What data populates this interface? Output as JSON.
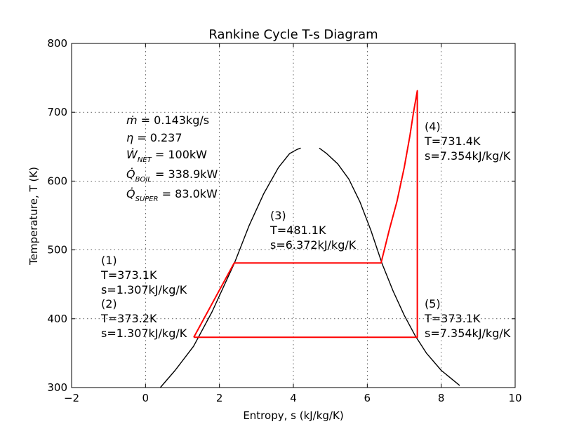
{
  "chart_data": {
    "type": "line",
    "title": "Rankine Cycle T-s Diagram",
    "xlabel": "Entropy, s (kJ/kg/K)",
    "ylabel": "Temperature, T (K)",
    "xlim": [
      -2,
      10
    ],
    "ylim": [
      300,
      800
    ],
    "xticks": [
      "−2",
      "0",
      "2",
      "4",
      "6",
      "8",
      "10"
    ],
    "yticks": [
      "300",
      "400",
      "500",
      "600",
      "700",
      "800"
    ],
    "grid": true,
    "colors": {
      "dome": "#000000",
      "cycle": "#ff0000"
    },
    "series": [
      {
        "x": [
          0.4,
          0.8,
          1.3,
          1.8,
          2.1,
          2.4,
          2.8,
          3.2,
          3.6,
          3.9,
          4.1,
          4.2
        ],
        "y": [
          300,
          325,
          360,
          410,
          445,
          480,
          535,
          582,
          620,
          640,
          646,
          648
        ]
      },
      {
        "x": [
          4.7,
          4.9,
          5.2,
          5.5,
          5.8,
          6.1,
          6.4,
          6.7,
          7.0,
          7.3,
          7.6,
          8.0,
          8.5
        ],
        "y": [
          648,
          640,
          625,
          603,
          570,
          528,
          480,
          440,
          405,
          375,
          350,
          325,
          303
        ]
      },
      {
        "x": [
          1.307,
          1.307,
          2.4,
          6.372,
          6.6,
          6.8,
          7.0,
          7.15,
          7.25,
          7.354,
          7.354,
          1.307
        ],
        "y": [
          373.1,
          373.2,
          481.1,
          481.1,
          530,
          570,
          620,
          665,
          700,
          731.4,
          373.1,
          373.1
        ]
      }
    ],
    "state_labels": [
      {
        "id": "(1)",
        "T": "T=373.1K",
        "s": "s=1.307kJ/kg/K"
      },
      {
        "id": "(2)",
        "T": "T=373.2K",
        "s": "s=1.307kJ/kg/K"
      },
      {
        "id": "(3)",
        "T": "T=481.1K",
        "s": "s=6.372kJ/kg/K"
      },
      {
        "id": "(4)",
        "T": "T=731.4K",
        "s": "s=7.354kJ/kg/K"
      },
      {
        "id": "(5)",
        "T": "T=373.1K",
        "s": "s=7.354kJ/kg/K"
      }
    ],
    "summary": [
      {
        "sym": "ṁ",
        "sub": "",
        "value": " = 0.143kg/s"
      },
      {
        "sym": "η",
        "sub": "",
        "value": " = 0.237"
      },
      {
        "sym": "Ẇ",
        "sub": "NET",
        "value": " = 100kW"
      },
      {
        "sym": "Q̇",
        "sub": "BOIL",
        "value": " = 338.9kW"
      },
      {
        "sym": "Q̇",
        "sub": "SUPER",
        "value": " = 83.0kW"
      }
    ]
  }
}
